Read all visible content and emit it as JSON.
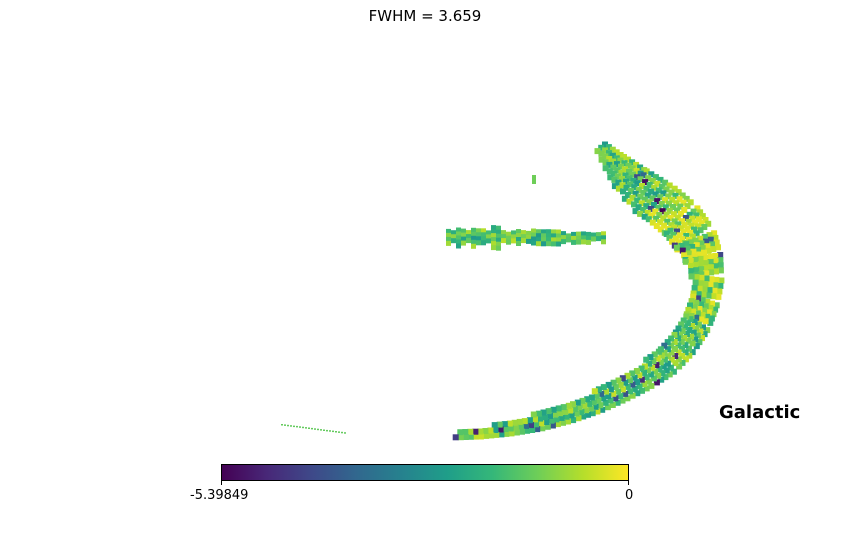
{
  "chart_data": {
    "type": "heatmap",
    "title": "FWHM = 3.659",
    "projection": "mollweide",
    "coord_label": "Galactic",
    "colormap": "viridis",
    "colorbar": {
      "min": -5.39849,
      "max": 0,
      "min_label": "-5.39849",
      "max_label": "0"
    },
    "typical_value_range": [
      -2.5,
      -0.2
    ],
    "regions": [
      "arc",
      "streak",
      "speck",
      "tail"
    ]
  }
}
